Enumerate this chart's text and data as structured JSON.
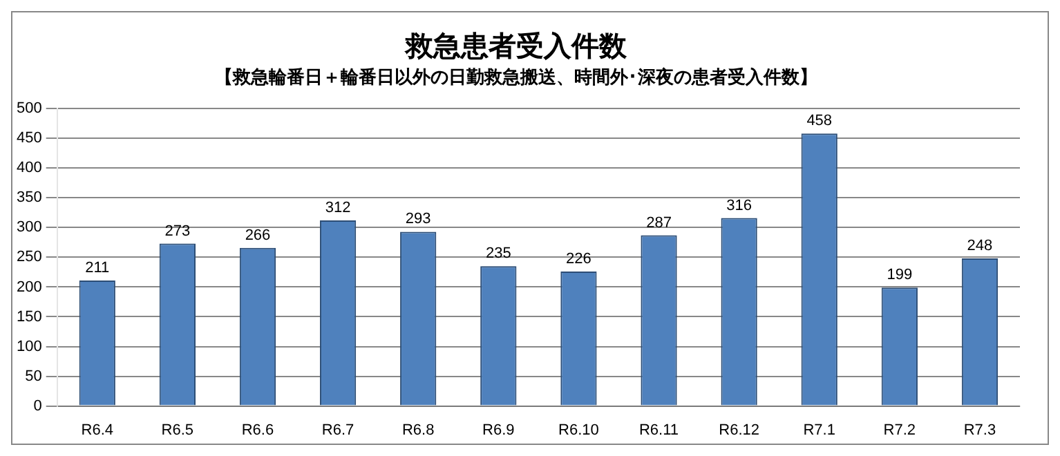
{
  "chart_data": {
    "type": "bar",
    "title": "救急患者受入件数",
    "subtitle": "【救急輪番日＋輪番日以外の日勤救急搬送、時間外･深夜の患者受入件数】",
    "categories": [
      "R6.4",
      "R6.5",
      "R6.6",
      "R6.7",
      "R6.8",
      "R6.9",
      "R6.10",
      "R6.11",
      "R6.12",
      "R7.1",
      "R7.2",
      "R7.3"
    ],
    "values": [
      211,
      273,
      266,
      312,
      293,
      235,
      226,
      287,
      316,
      458,
      199,
      248
    ],
    "color": "#4f81bd",
    "ylim": [
      0,
      500
    ],
    "yticks": [
      0,
      50,
      100,
      150,
      200,
      250,
      300,
      350,
      400,
      450,
      500
    ],
    "grid": "y",
    "data_labels": true
  }
}
